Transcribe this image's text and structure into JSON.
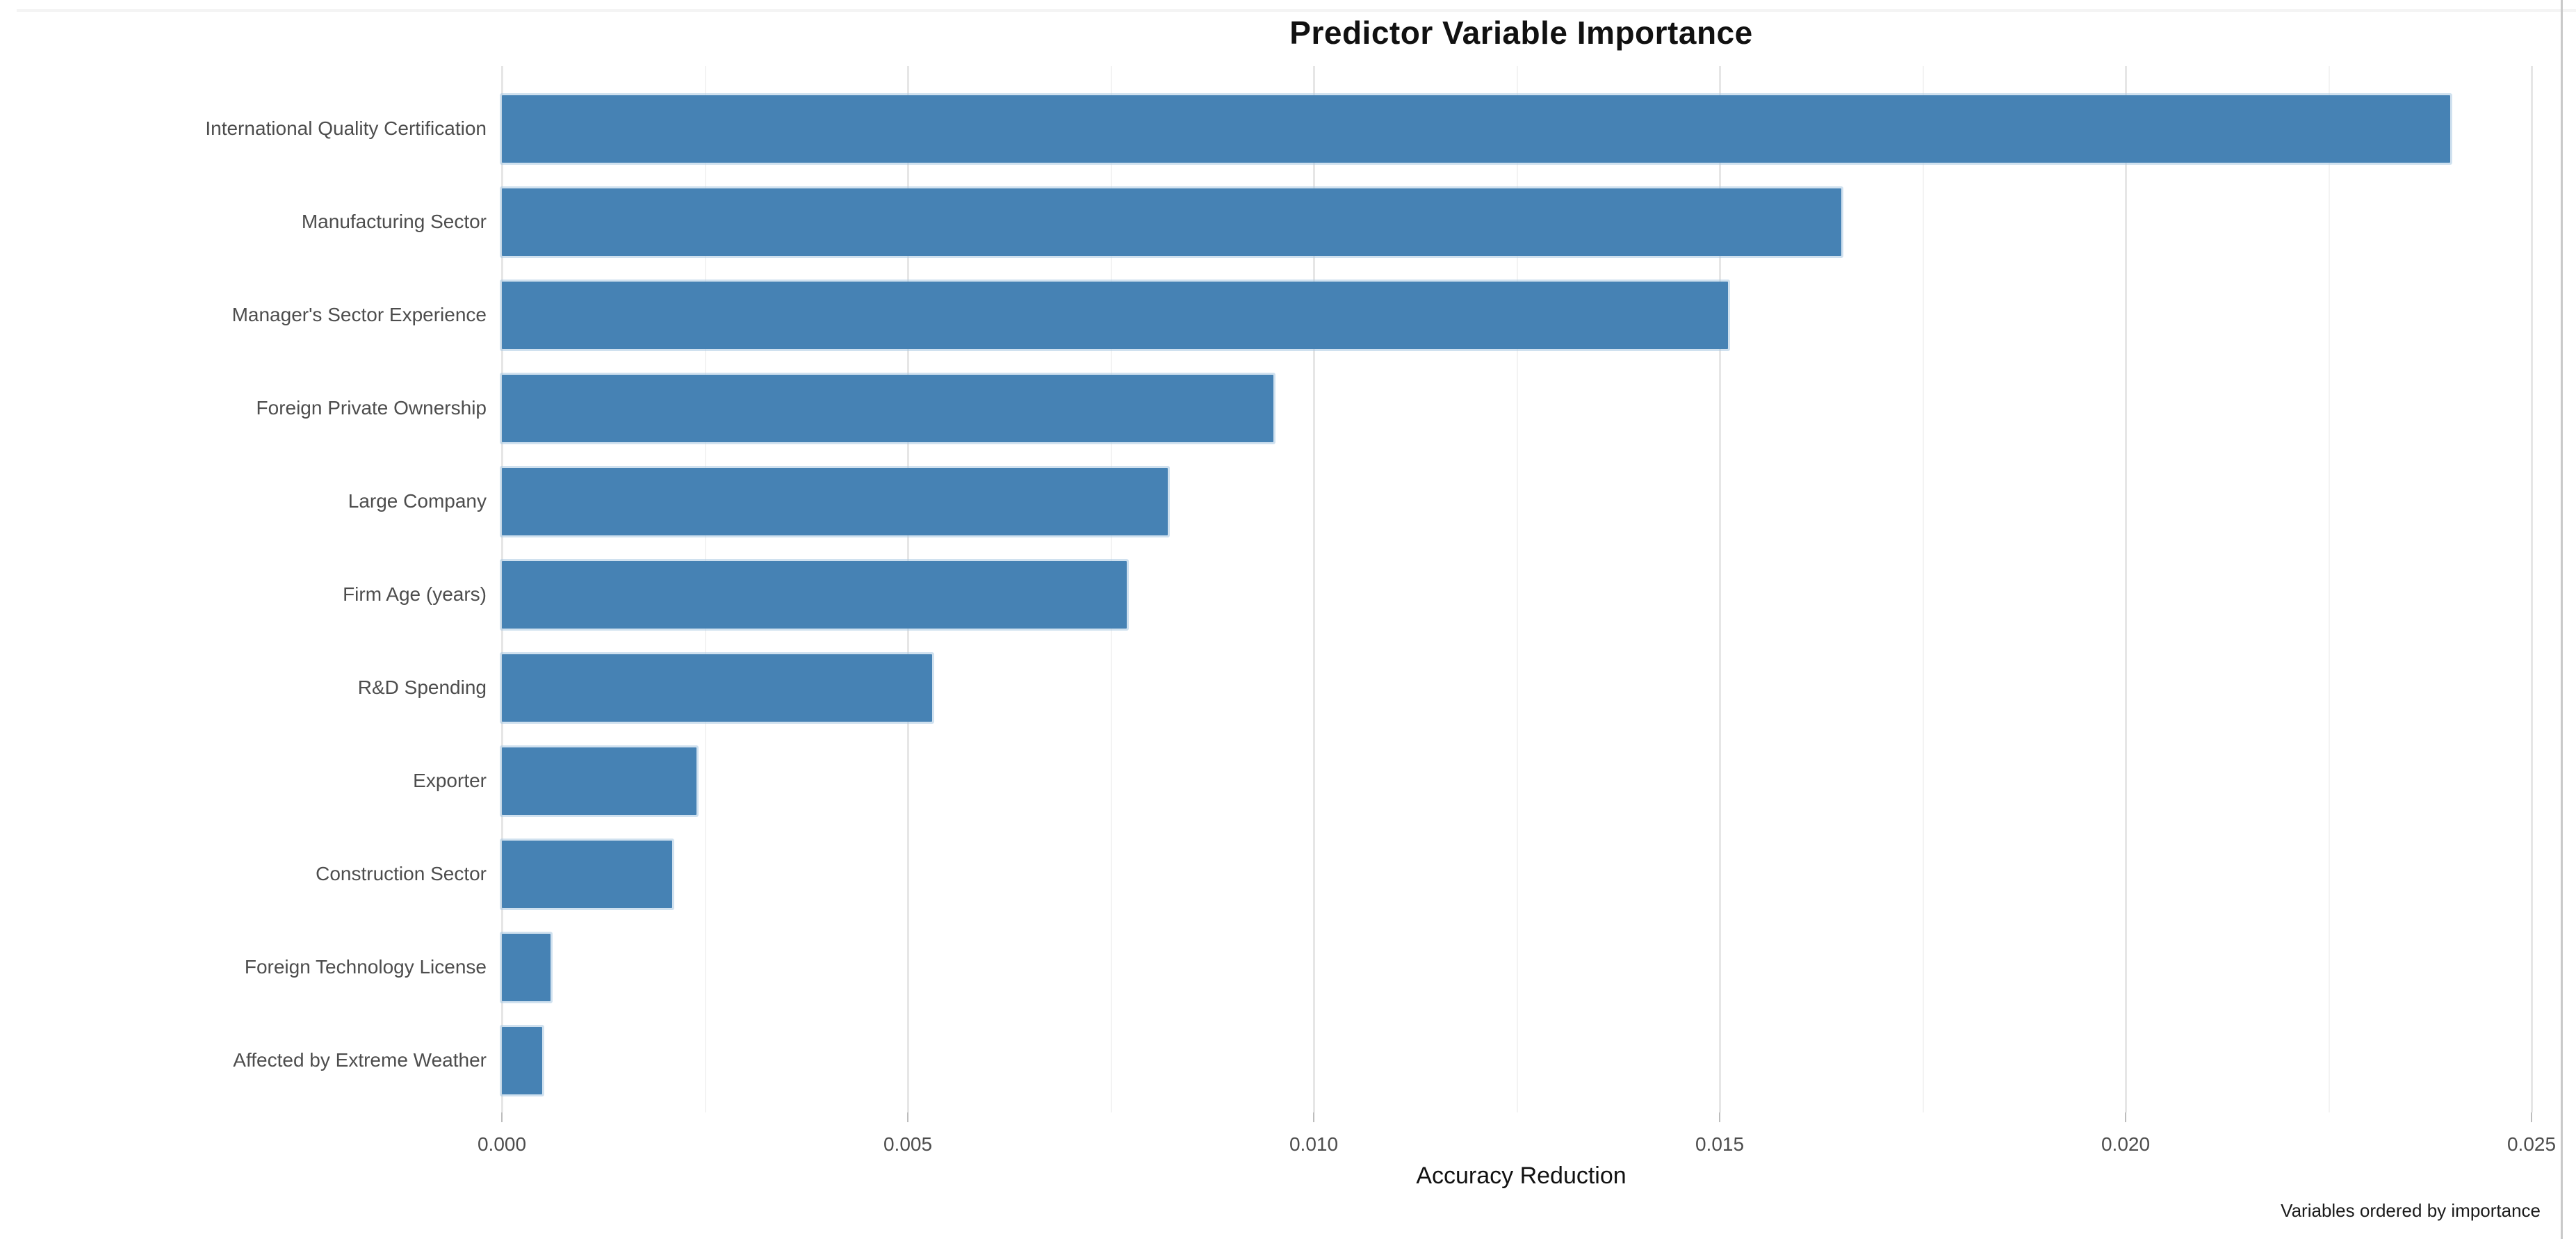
{
  "chart_data": {
    "type": "bar",
    "orientation": "horizontal",
    "title": "Predictor Variable Importance",
    "xlabel": "Accuracy Reduction",
    "caption": "Variables ordered by importance",
    "categories": [
      "International Quality Certification",
      "Manufacturing Sector",
      "Manager's Sector Experience",
      "Foreign Private Ownership",
      "Large Company",
      "Firm Age (years)",
      "R&D Spending",
      "Exporter",
      "Construction Sector",
      "Foreign Technology License",
      "Affected by Extreme Weather"
    ],
    "values": [
      0.024,
      0.0165,
      0.0151,
      0.0095,
      0.0082,
      0.0077,
      0.0053,
      0.0024,
      0.0021,
      0.0006,
      0.0005
    ],
    "xlim": [
      0,
      0.025
    ],
    "x_ticks": [
      0,
      0.005,
      0.01,
      0.015,
      0.02,
      0.025
    ],
    "x_tick_labels": [
      "0.000",
      "0.005",
      "0.010",
      "0.015",
      "0.020",
      "0.025"
    ],
    "x_minor_ticks": [
      0.0025,
      0.0075,
      0.0125,
      0.0175,
      0.0225
    ],
    "grid": "vertical-only",
    "legend": "none",
    "bar_color": "#4682B4",
    "ordering_note": "bars sorted descending by importance"
  }
}
